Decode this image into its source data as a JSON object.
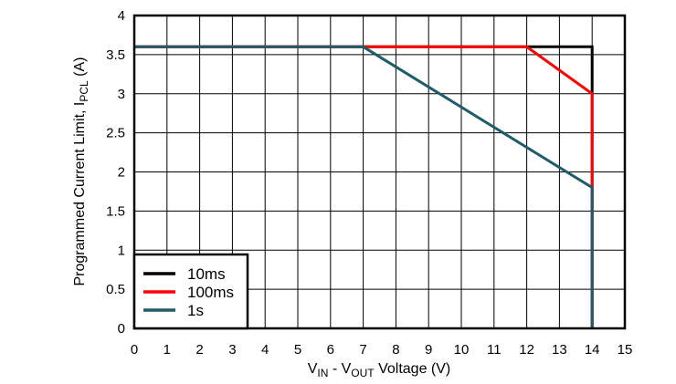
{
  "chart_data": {
    "type": "line",
    "title": "",
    "xlabel": {
      "parts": [
        {
          "t": "V",
          "sub": false
        },
        {
          "t": "IN",
          "sub": true
        },
        {
          "t": " - V",
          "sub": false
        },
        {
          "t": "OUT",
          "sub": true
        },
        {
          "t": " Voltage (V)",
          "sub": false
        }
      ]
    },
    "ylabel": {
      "parts": [
        {
          "t": "Programmed Current Limit, I",
          "sub": false
        },
        {
          "t": "PCL",
          "sub": true
        },
        {
          "t": " (A)",
          "sub": false
        }
      ]
    },
    "xlim": [
      0,
      15
    ],
    "ylim": [
      0,
      4
    ],
    "xticks": [
      0,
      1,
      2,
      3,
      4,
      5,
      6,
      7,
      8,
      9,
      10,
      11,
      12,
      13,
      14,
      15
    ],
    "yticks": [
      0,
      0.5,
      1,
      1.5,
      2,
      2.5,
      3,
      3.5,
      4
    ],
    "xtick_labels": [
      "0",
      "1",
      "2",
      "3",
      "4",
      "5",
      "6",
      "7",
      "8",
      "9",
      "10",
      "11",
      "12",
      "13",
      "14",
      "15"
    ],
    "ytick_labels": [
      "0",
      "0.5",
      "1",
      "1.5",
      "2",
      "2.5",
      "3",
      "3.5",
      "4"
    ],
    "grid": true,
    "legend_position": "bottom-left",
    "series": [
      {
        "name": "10ms",
        "color": "#000000",
        "x": [
          0,
          14,
          14
        ],
        "y": [
          3.6,
          3.6,
          0
        ]
      },
      {
        "name": "100ms",
        "color": "#ff0000",
        "x": [
          0,
          12,
          14,
          14
        ],
        "y": [
          3.6,
          3.6,
          3.0,
          0
        ]
      },
      {
        "name": "1s",
        "color": "#1f5b68",
        "x": [
          0,
          7,
          14,
          14
        ],
        "y": [
          3.6,
          3.6,
          1.8,
          0
        ]
      }
    ]
  }
}
